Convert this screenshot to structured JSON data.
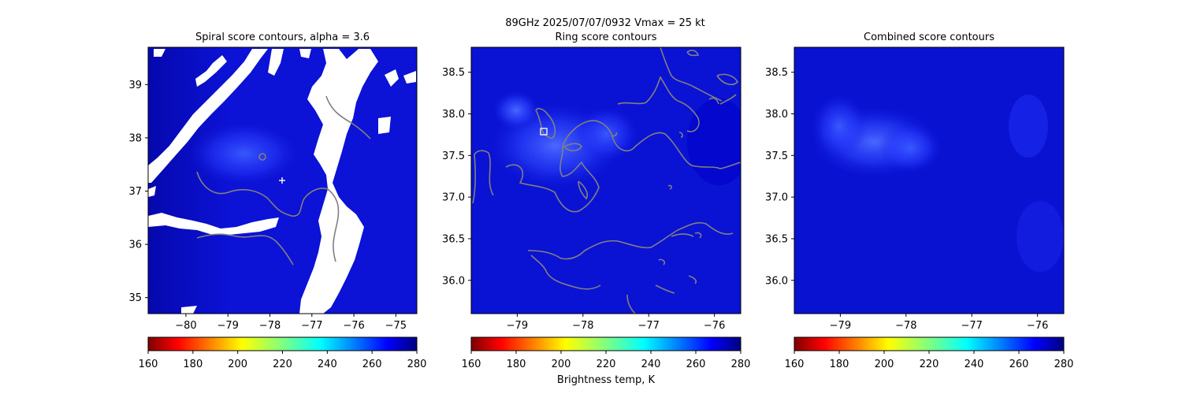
{
  "figure": {
    "suptitle": "89GHz  2025/07/07/0932    Vmax = 25 kt",
    "colorbar_label": "Brightness temp, K",
    "colormap": "jet_r",
    "colors": {
      "background_field": "#0a14d8",
      "contour": "#808080",
      "missing": "#ffffff",
      "marker": "#ffffff"
    }
  },
  "chart_data": [
    {
      "type": "heatmap",
      "title": "Spiral score contours, alpha =  3.6",
      "xlim": [
        -80.9,
        -74.5
      ],
      "ylim": [
        34.7,
        39.7
      ],
      "xticks": [
        -80,
        -79,
        -78,
        -77,
        -76,
        -75
      ],
      "xtick_labels": [
        "−80",
        "−79",
        "−78",
        "−77",
        "−76",
        "−75"
      ],
      "yticks": [
        35,
        36,
        37,
        38,
        39
      ],
      "ytick_labels": [
        "35",
        "36",
        "37",
        "38",
        "39"
      ],
      "colorbar": {
        "range": [
          160,
          280
        ],
        "ticks": [
          "160",
          "180",
          "200",
          "220",
          "240",
          "260",
          "280"
        ]
      },
      "markers": [
        {
          "kind": "plus",
          "lon": -77.7,
          "lat": 37.2
        }
      ],
      "warm_region": {
        "lon": -78.5,
        "lat": 37.6,
        "min_temp_K": 255
      }
    },
    {
      "type": "heatmap",
      "title": "Ring score contours",
      "xlim": [
        -79.7,
        -75.6
      ],
      "ylim": [
        35.6,
        38.8
      ],
      "xticks": [
        -79,
        -78,
        -77,
        -76
      ],
      "xtick_labels": [
        "−79",
        "−78",
        "−77",
        "−76"
      ],
      "yticks": [
        36.0,
        36.5,
        37.0,
        37.5,
        38.0,
        38.5
      ],
      "ytick_labels": [
        "36.0",
        "36.5",
        "37.0",
        "37.5",
        "38.0",
        "38.5"
      ],
      "colorbar": {
        "range": [
          160,
          280
        ],
        "ticks": [
          "160",
          "180",
          "200",
          "220",
          "240",
          "260",
          "280"
        ]
      },
      "markers": [
        {
          "kind": "square",
          "lon": -78.6,
          "lat": 37.8
        }
      ],
      "warm_region": {
        "lon": -78.2,
        "lat": 37.7,
        "min_temp_K": 255
      }
    },
    {
      "type": "heatmap",
      "title": "Combined score contours",
      "xlim": [
        -79.7,
        -75.6
      ],
      "ylim": [
        35.6,
        38.8
      ],
      "xticks": [
        -79,
        -78,
        -77,
        -76
      ],
      "xtick_labels": [
        "−79",
        "−78",
        "−77",
        "−76"
      ],
      "yticks": [
        36.0,
        36.5,
        37.0,
        37.5,
        38.0,
        38.5
      ],
      "ytick_labels": [
        "36.0",
        "36.5",
        "37.0",
        "37.5",
        "38.0",
        "38.5"
      ],
      "colorbar": {
        "range": [
          160,
          280
        ],
        "ticks": [
          "160",
          "180",
          "200",
          "220",
          "240",
          "260",
          "280"
        ]
      },
      "markers": [],
      "warm_region": {
        "lon": -78.4,
        "lat": 37.65,
        "min_temp_K": 258
      }
    }
  ]
}
